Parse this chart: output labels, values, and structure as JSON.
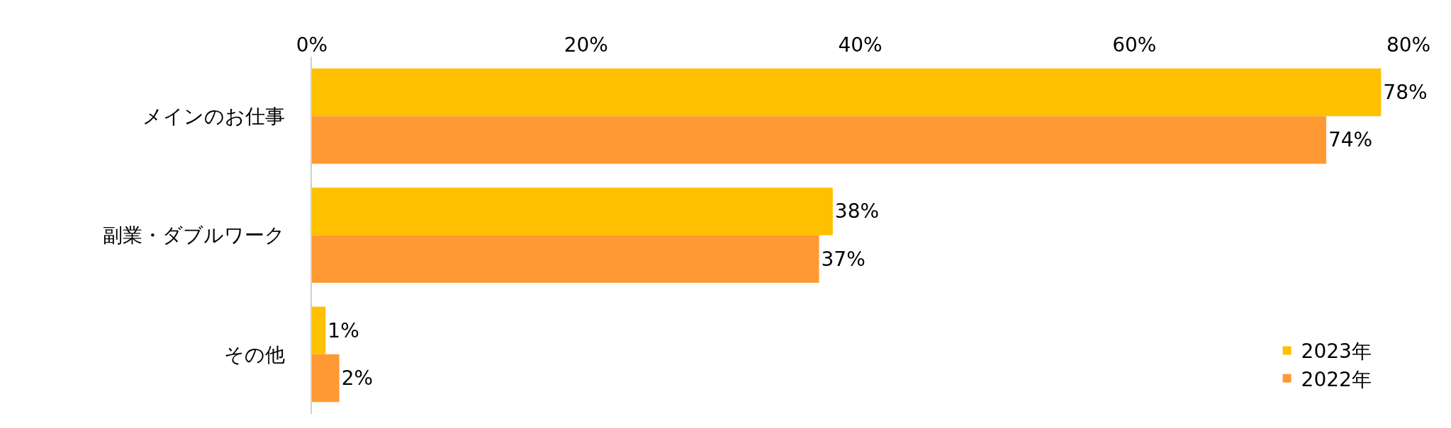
{
  "chart_data": {
    "type": "bar",
    "orientation": "horizontal",
    "categories": [
      "メインのお仕事",
      "副業・ダブルワーク",
      "その他"
    ],
    "series": [
      {
        "name": "2023年",
        "color": "#ffc000",
        "values": [
          78,
          38,
          1
        ],
        "value_labels": [
          "78%",
          "38%",
          "1%"
        ]
      },
      {
        "name": "2022年",
        "color": "#ff9933",
        "values": [
          74,
          37,
          2
        ],
        "value_labels": [
          "74%",
          "37%",
          "2%"
        ]
      }
    ],
    "xlim": [
      0,
      80
    ],
    "xticks": [
      {
        "value": 0,
        "label": "0%"
      },
      {
        "value": 20,
        "label": "20%"
      },
      {
        "value": 40,
        "label": "40%"
      },
      {
        "value": 60,
        "label": "60%"
      },
      {
        "value": 80,
        "label": "80%"
      }
    ],
    "legend": "bottom right"
  }
}
